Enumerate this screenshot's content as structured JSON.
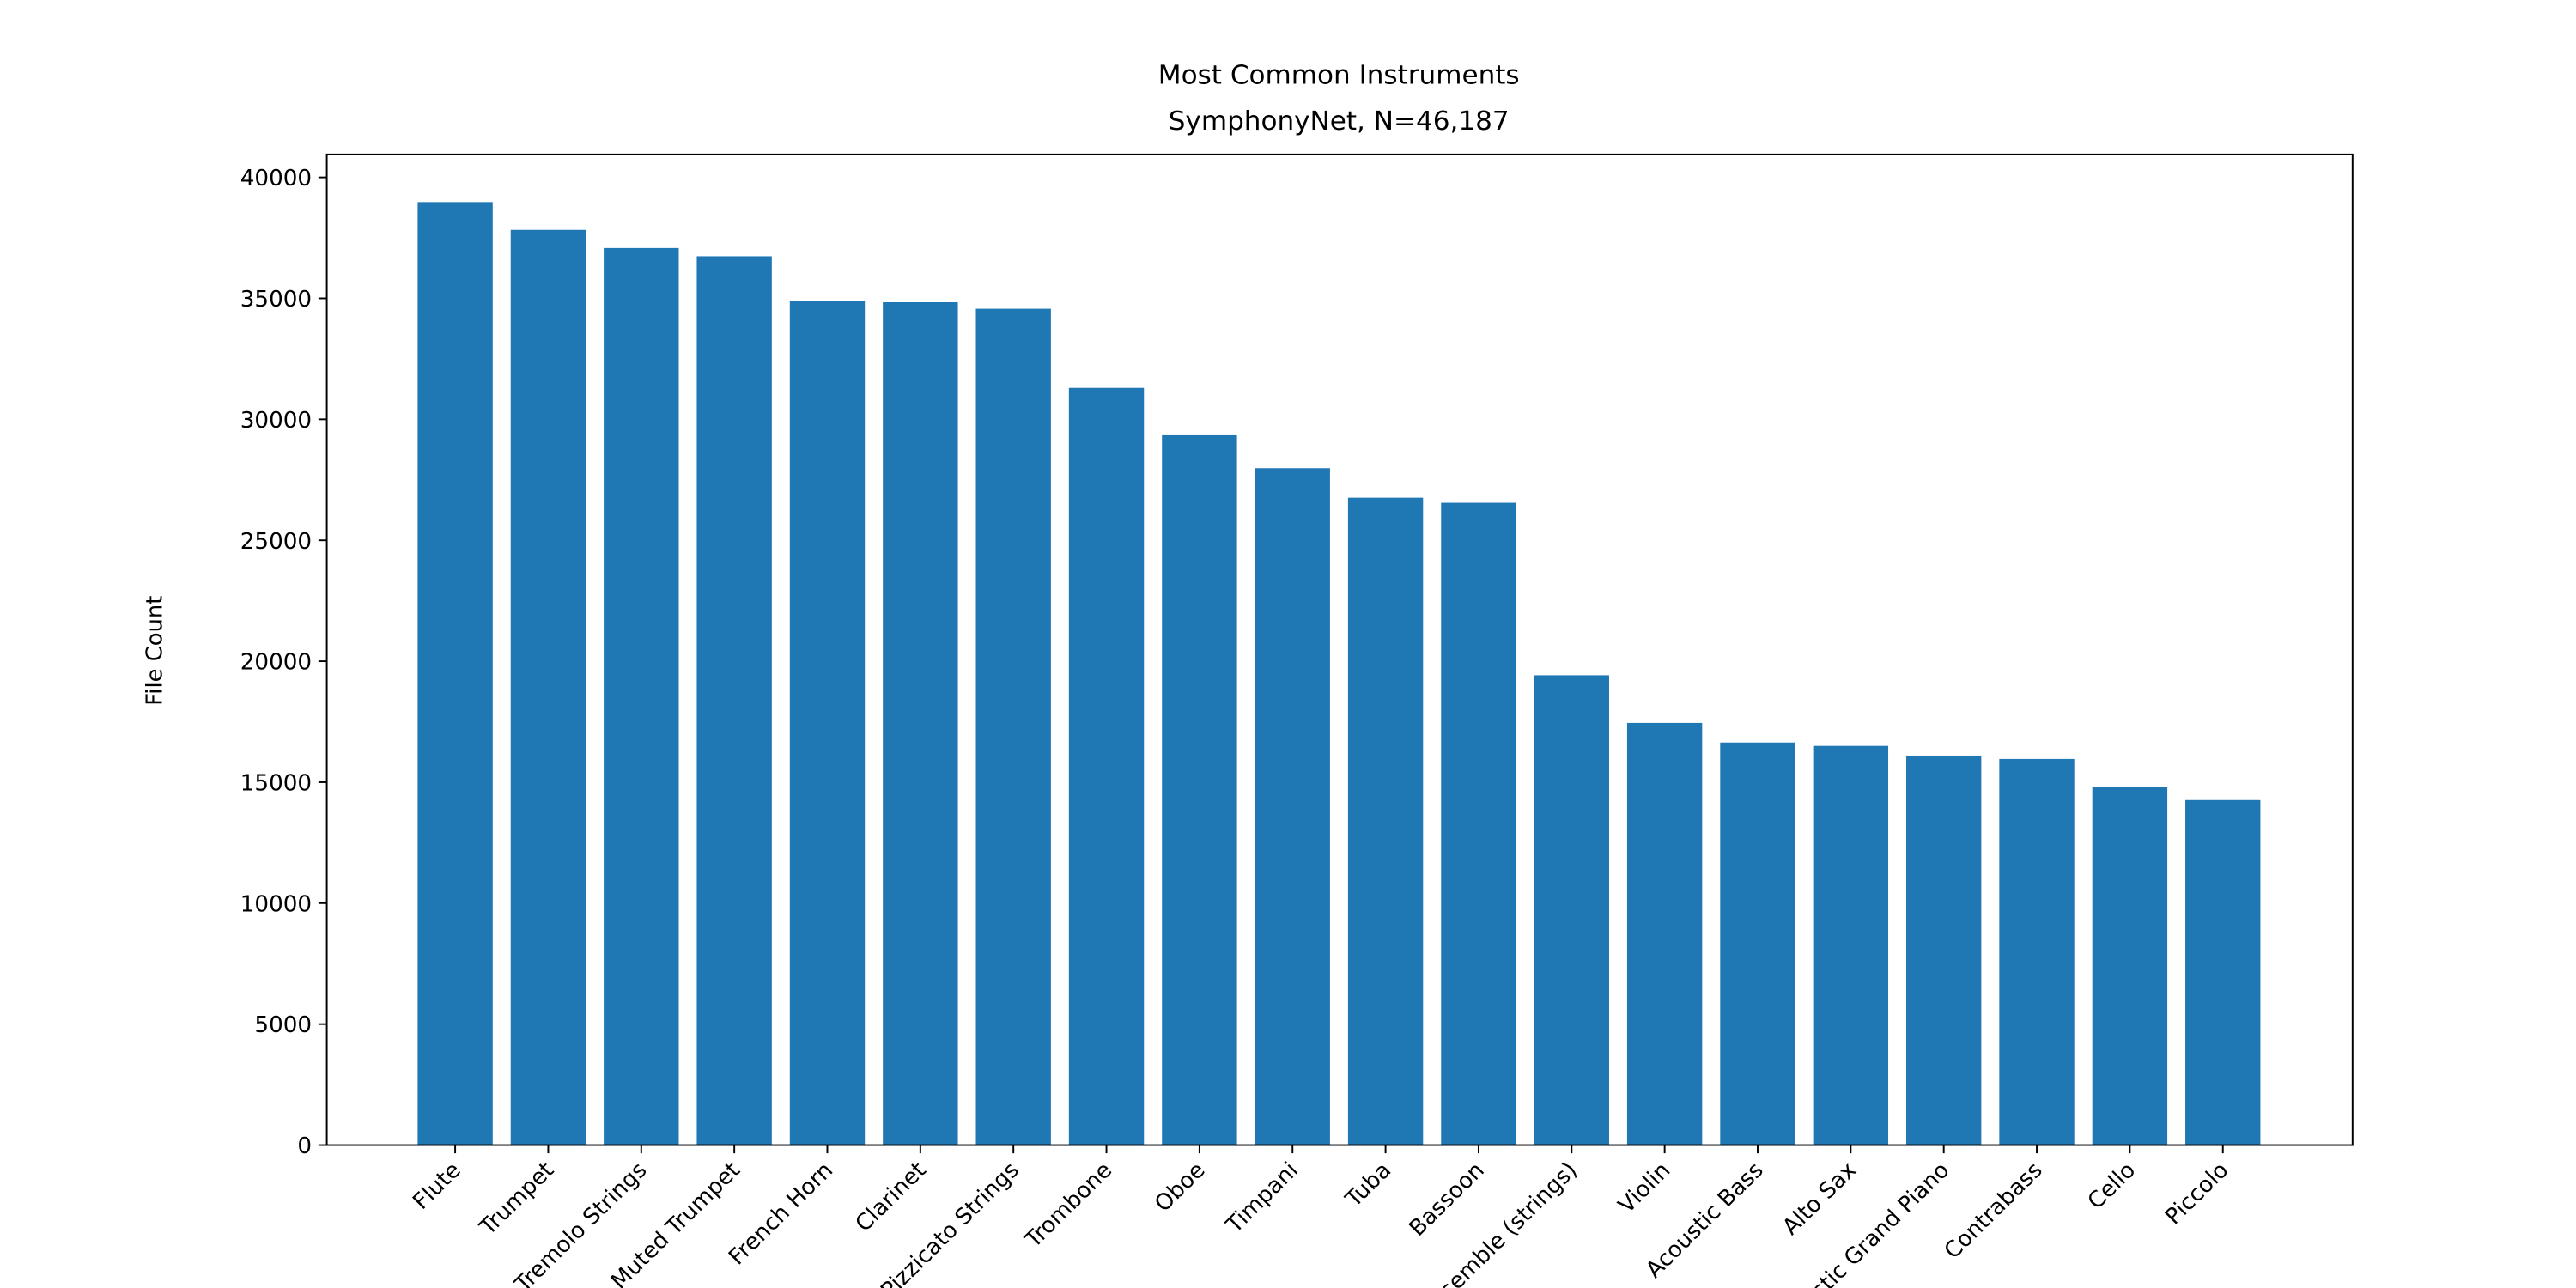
{
  "chart_data": {
    "type": "bar",
    "title": "Most Common Instruments",
    "subtitle": "SymphonyNet, N=46,187",
    "y_label": "File Count",
    "categories": [
      "Flute",
      "Trumpet",
      "Tremolo Strings",
      "Muted Trumpet",
      "French Horn",
      "Clarinet",
      "Pizzicato Strings",
      "Trombone",
      "Oboe",
      "Timpani",
      "Tuba",
      "Bassoon",
      "Ensemble (strings)",
      "Violin",
      "Acoustic Bass",
      "Alto Sax",
      "Acoustic Grand Piano",
      "Contrabass",
      "Cello",
      "Piccolo"
    ],
    "values": [
      38980,
      37830,
      37080,
      36740,
      34900,
      34840,
      34570,
      31300,
      29340,
      27980,
      26760,
      26550,
      19420,
      17450,
      16640,
      16500,
      16100,
      15960,
      14800,
      14260
    ],
    "color": "#1f77b4",
    "ylim": [
      0,
      40950
    ],
    "yticks": [
      0,
      5000,
      10000,
      15000,
      20000,
      25000,
      30000,
      35000,
      40000
    ],
    "grid": false
  }
}
